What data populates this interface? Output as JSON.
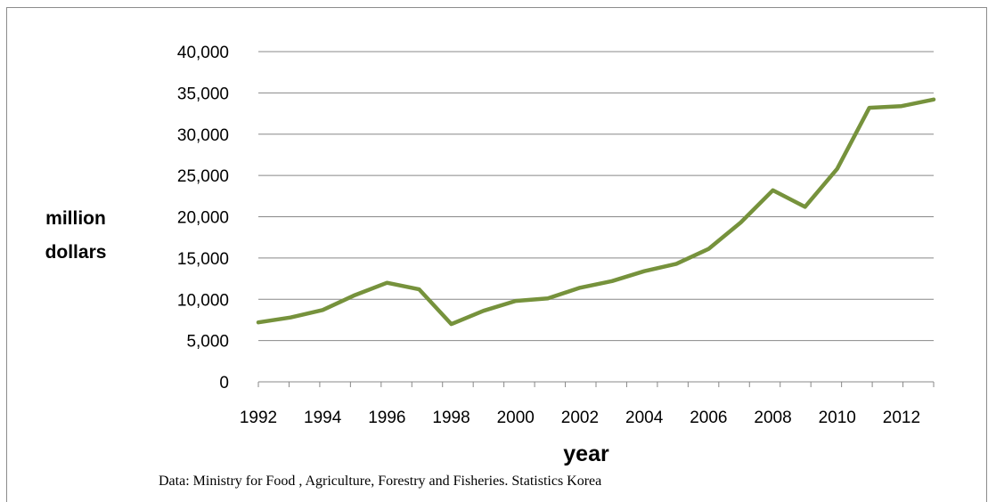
{
  "chart_data": {
    "type": "line",
    "title": "",
    "xlabel": "year",
    "ylabel_lines": [
      "million",
      "dollars"
    ],
    "x": [
      1992,
      1993,
      1994,
      1995,
      1996,
      1997,
      1998,
      1999,
      2000,
      2001,
      2002,
      2003,
      2004,
      2005,
      2006,
      2007,
      2008,
      2009,
      2010,
      2011,
      2012,
      2013
    ],
    "series": [
      {
        "values": [
          7200,
          7800,
          8700,
          10500,
          12000,
          11200,
          7000,
          8600,
          9800,
          10100,
          11400,
          12200,
          13400,
          14300,
          16100,
          19300,
          23200,
          21200,
          25800,
          33200,
          33400,
          34200
        ],
        "color": "#76923c"
      }
    ],
    "ylim": [
      0,
      40000
    ],
    "yticks": [
      0,
      5000,
      10000,
      15000,
      20000,
      25000,
      30000,
      35000,
      40000
    ],
    "ytick_labels": [
      "0",
      "5,000",
      "10,000",
      "15,000",
      "20,000",
      "25,000",
      "30,000",
      "35,000",
      "40,000"
    ],
    "xtick_labels": [
      "1992",
      "1994",
      "1996",
      "1998",
      "2000",
      "2002",
      "2004",
      "2006",
      "2008",
      "2010",
      "2012"
    ],
    "grid": true,
    "legend": "none"
  },
  "source_note": "Data: Ministry  for Food , Agriculture,  Forestry and Fisheries. Statistics Korea",
  "colors": {
    "line": "#76923c",
    "grid": "#888888",
    "frame": "#8c8c8c"
  }
}
